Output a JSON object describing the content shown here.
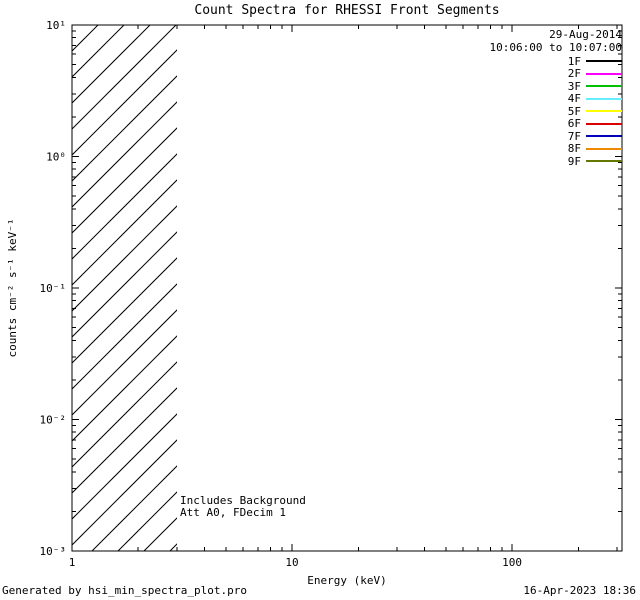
{
  "title": "Count Spectra for RHESSI Front Segments",
  "header": {
    "date": "29-Aug-2014",
    "time_range": "10:06:00 to 10:07:00"
  },
  "legend": {
    "entries": [
      {
        "label": "1F",
        "color": "#000000"
      },
      {
        "label": "2F",
        "color": "#ff00ff"
      },
      {
        "label": "3F",
        "color": "#00c000"
      },
      {
        "label": "4F",
        "color": "#66eeff"
      },
      {
        "label": "5F",
        "color": "#ffff00"
      },
      {
        "label": "6F",
        "color": "#dd0000"
      },
      {
        "label": "7F",
        "color": "#0000bb"
      },
      {
        "label": "8F",
        "color": "#ee8800"
      },
      {
        "label": "9F",
        "color": "#667700"
      }
    ]
  },
  "annotations": {
    "line1": "Includes Background",
    "line2": "Att A0, FDecim 1"
  },
  "footer": {
    "left": "Generated by hsi_min_spectra_plot.pro",
    "right": "16-Apr-2023 18:36"
  },
  "chart_data": {
    "type": "line",
    "title": "Count Spectra for RHESSI Front Segments",
    "xlabel": "Energy (keV)",
    "ylabel": "counts cm⁻² s⁻¹ keV⁻¹",
    "xscale": "log",
    "yscale": "log",
    "xlim": [
      1,
      316
    ],
    "ylim": [
      0.001,
      10
    ],
    "x_ticks": [
      {
        "value": 1,
        "label": "1"
      },
      {
        "value": 10,
        "label": "10"
      },
      {
        "value": 100,
        "label": "100"
      }
    ],
    "y_ticks": [
      {
        "value": 0.001,
        "label": "10⁻³"
      },
      {
        "value": 0.01,
        "label": "10⁻²"
      },
      {
        "value": 0.1,
        "label": "10⁻¹"
      },
      {
        "value": 1,
        "label": "10⁰"
      },
      {
        "value": 10,
        "label": "10¹"
      }
    ],
    "series": [],
    "hatched_region": {
      "x_min": 1,
      "x_max": 3,
      "y_min": 0.001,
      "y_max": 10,
      "style": "diagonal-line-fill"
    },
    "grid": false,
    "legend_position": "top-right"
  }
}
